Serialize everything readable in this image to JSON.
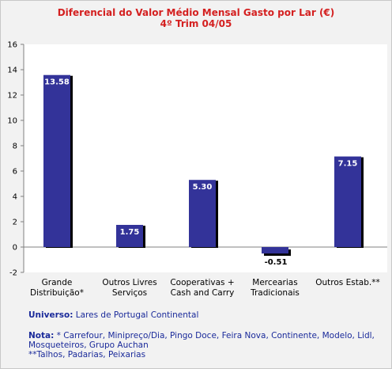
{
  "chart_data": {
    "type": "bar",
    "title": "Diferencial do Valor Médio Mensal Gasto por Lar (€)",
    "subtitle": "4º Trim 04/05",
    "categories": [
      [
        "Grande",
        "Distribuição*"
      ],
      [
        "Outros Livres",
        "Serviços"
      ],
      [
        "Cooperativas +",
        "Cash and Carry"
      ],
      [
        "Mercearias",
        "Tradicionais"
      ],
      [
        "Outros Estab.**"
      ]
    ],
    "values": [
      13.58,
      1.75,
      5.3,
      -0.51,
      7.15
    ],
    "value_labels": [
      "13.58",
      "1.75",
      "5.30",
      "-0.51",
      "7.15"
    ],
    "ylim": [
      -2,
      16
    ],
    "yticks": [
      -2,
      0,
      2,
      4,
      6,
      8,
      10,
      12,
      14,
      16
    ],
    "grid": false,
    "legend": "none",
    "bar_color": "#333399",
    "shadow_color": "#000000"
  },
  "notes": {
    "universe_label": "Universo:",
    "universe_text": "Lares de Portugal Continental",
    "nota_label": "Nota:",
    "nota_line1": "* Carrefour, Minipreço/Dia, Pingo Doce, Feira Nova, Continente, Modelo, Lidl,",
    "nota_line2": "Mosqueteiros, Grupo Auchan",
    "nota_line3": "**Talhos, Padarias, Peixarias"
  }
}
